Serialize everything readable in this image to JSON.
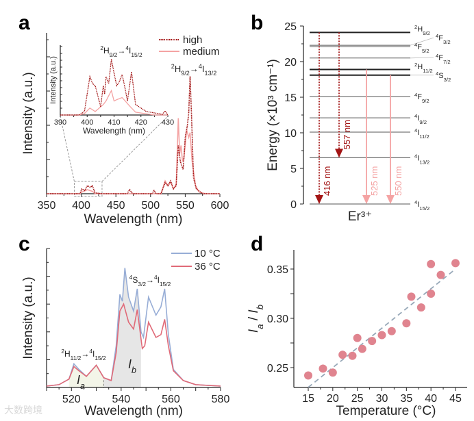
{
  "panels": {
    "a": "a",
    "b": "b",
    "c": "c",
    "d": "d"
  },
  "watermark": "大数跨境",
  "chart_data": [
    {
      "id": "a",
      "type": "line",
      "xlabel": "Wavelength (nm)",
      "ylabel": "Intensity (a.u.)",
      "xlim": [
        350,
        600
      ],
      "ylim": [
        0,
        1
      ],
      "xticks": [
        350,
        400,
        450,
        500,
        550,
        600
      ],
      "legend": {
        "placement": "top-right",
        "entries": [
          "high",
          "medium"
        ]
      },
      "colors": {
        "high": "#a31515",
        "medium": "#f4a3a3"
      },
      "annotation": {
        "up": [
          "2",
          "H",
          "9/2"
        ],
        "low": [
          "4",
          "I",
          "13/2"
        ]
      },
      "zoom_box": [
        390,
        430
      ],
      "series": [
        {
          "name": "high",
          "style": "dotted",
          "points": [
            [
              350,
              0
            ],
            [
              398,
              0
            ],
            [
              401,
              0.03
            ],
            [
              405,
              0.02
            ],
            [
              409,
              0.05
            ],
            [
              413,
              0.04
            ],
            [
              416,
              0.05
            ],
            [
              420,
              0.005
            ],
            [
              430,
              0
            ],
            [
              466,
              0
            ],
            [
              470,
              0.025
            ],
            [
              474,
              0
            ],
            [
              502,
              0
            ],
            [
              505,
              0.02
            ],
            [
              508,
              0
            ],
            [
              515,
              0
            ],
            [
              521,
              0.07
            ],
            [
              525,
              0.05
            ],
            [
              529,
              0.08
            ],
            [
              533,
              0.03
            ],
            [
              537,
              0.05
            ],
            [
              540,
              0.3
            ],
            [
              543,
              0.2
            ],
            [
              547,
              0.15
            ],
            [
              550,
              0.35
            ],
            [
              553,
              0.42
            ],
            [
              555,
              0.5
            ],
            [
              557,
              0.73
            ],
            [
              559,
              0.5
            ],
            [
              562,
              0.1
            ],
            [
              566,
              0.03
            ],
            [
              575,
              0
            ],
            [
              600,
              0
            ]
          ]
        },
        {
          "name": "medium",
          "style": "solid",
          "points": [
            [
              350,
              0
            ],
            [
              398,
              0
            ],
            [
              401,
              0.01
            ],
            [
              409,
              0.025
            ],
            [
              416,
              0.015
            ],
            [
              420,
              0
            ],
            [
              515,
              0
            ],
            [
              521,
              0.08
            ],
            [
              525,
              0.05
            ],
            [
              529,
              0.07
            ],
            [
              533,
              0.03
            ],
            [
              537,
              0.06
            ],
            [
              540,
              0.47
            ],
            [
              542,
              0.25
            ],
            [
              544,
              0.3
            ],
            [
              546,
              0.2
            ],
            [
              548,
              0.22
            ],
            [
              550,
              0.3
            ],
            [
              552,
              0.4
            ],
            [
              555,
              0.35
            ],
            [
              557,
              0.38
            ],
            [
              560,
              0.2
            ],
            [
              565,
              0.05
            ],
            [
              570,
              0.01
            ],
            [
              580,
              0
            ],
            [
              600,
              0
            ]
          ]
        }
      ],
      "inset": {
        "xlabel": "Wavelength (nm)",
        "ylabel": "Intensity (a.u.)",
        "xlim": [
          390,
          430
        ],
        "ylim": [
          0,
          1
        ],
        "xticks": [
          390,
          400,
          410,
          420,
          430
        ],
        "annotation": {
          "up": [
            "2",
            "H",
            "9/2"
          ],
          "low": [
            "4",
            "I",
            "15/2"
          ]
        },
        "series": [
          {
            "name": "high",
            "points": [
              [
                390,
                0
              ],
              [
                397,
                0
              ],
              [
                399,
                0.05
              ],
              [
                401,
                0.55
              ],
              [
                402,
                0.45
              ],
              [
                403,
                0.42
              ],
              [
                405,
                0.12
              ],
              [
                406,
                0.42
              ],
              [
                406.5,
                0.3
              ],
              [
                407,
                0.55
              ],
              [
                408,
                0.45
              ],
              [
                409,
                0.8
              ],
              [
                410,
                0.6
              ],
              [
                411,
                0.42
              ],
              [
                412,
                0.48
              ],
              [
                413,
                0.58
              ],
              [
                414,
                0.4
              ],
              [
                415,
                0.2
              ],
              [
                416.5,
                0.62
              ],
              [
                418,
                0.15
              ],
              [
                422,
                0.05
              ],
              [
                428,
                0.01
              ],
              [
                429,
                0.06
              ],
              [
                430,
                0
              ]
            ]
          },
          {
            "name": "medium",
            "points": [
              [
                390,
                0
              ],
              [
                397,
                0
              ],
              [
                399,
                0.02
              ],
              [
                401,
                0.1
              ],
              [
                403,
                0.05
              ],
              [
                406,
                0.15
              ],
              [
                407,
                0.2
              ],
              [
                409,
                0.35
              ],
              [
                410,
                0.2
              ],
              [
                411,
                0.22
              ],
              [
                413,
                0.25
              ],
              [
                416,
                0.12
              ],
              [
                418,
                0.04
              ],
              [
                425,
                0
              ],
              [
                430,
                0
              ]
            ]
          }
        ]
      }
    },
    {
      "id": "b",
      "type": "diagram",
      "ylabel": "Energy (×10³ cm⁻¹)",
      "xlabel": "Er³⁺",
      "ylim": [
        0,
        25
      ],
      "yticks": [
        0,
        5,
        10,
        15,
        20,
        25
      ],
      "levels": [
        {
          "sup": "2",
          "sym": "H",
          "sub": "9/2",
          "energy": 24.1,
          "bold": true
        },
        {
          "sup": "4",
          "sym": "F",
          "sub": "3/2",
          "energy": 22.3
        },
        {
          "sup": "4",
          "sym": "F",
          "sub": "5/2",
          "energy": 22.1
        },
        {
          "sup": "4",
          "sym": "F",
          "sub": "7/2",
          "energy": 20.5
        },
        {
          "sup": "2",
          "sym": "H",
          "sub": "11/2",
          "energy": 18.9,
          "bold": true
        },
        {
          "sup": "4",
          "sym": "S",
          "sub": "3/2",
          "energy": 18.1,
          "bold": true
        },
        {
          "sup": "4",
          "sym": "F",
          "sub": "9/2",
          "energy": 15.1
        },
        {
          "sup": "4",
          "sym": "I",
          "sub": "9/2",
          "energy": 12.1
        },
        {
          "sup": "4",
          "sym": "I",
          "sub": "11/2",
          "energy": 10.1
        },
        {
          "sup": "4",
          "sym": "I",
          "sub": "13/2",
          "energy": 6.5
        },
        {
          "sup": "4",
          "sym": "I",
          "sub": "15/2",
          "energy": 0
        }
      ],
      "label_offsets": [
        0,
        0.6,
        -0.6,
        -1.2,
        0.3,
        -0.5,
        0,
        0,
        0,
        0,
        0
      ],
      "transitions": [
        {
          "label": "416 nm",
          "from": 24.1,
          "to": 0,
          "style": "dotted",
          "color": "#a31515"
        },
        {
          "label": "557 nm",
          "from": 24.1,
          "to": 6.5,
          "style": "dotted",
          "color": "#a31515"
        },
        {
          "label": "525 nm",
          "from": 18.9,
          "to": 0,
          "style": "solid",
          "color": "#f4a3a3"
        },
        {
          "label": "550 nm",
          "from": 18.1,
          "to": 0,
          "style": "solid",
          "color": "#f4a3a3"
        }
      ]
    },
    {
      "id": "c",
      "type": "line",
      "xlabel": "Wavelength (nm)",
      "ylabel": "Intensity (a.u.)",
      "xlim": [
        510,
        580
      ],
      "ylim": [
        0,
        1
      ],
      "xticks": [
        520,
        540,
        560,
        580
      ],
      "legend": {
        "placement": "top-right",
        "entries": [
          "10 °C",
          "36 °C"
        ]
      },
      "colors": {
        "10 °C": "#97add6",
        "36 °C": "#e06a78"
      },
      "annotations": [
        {
          "up": [
            "4",
            "S",
            "3/2"
          ],
          "low": [
            "4",
            "I",
            "15/2"
          ]
        },
        {
          "up": [
            "2",
            "H",
            "11/2"
          ],
          "low": [
            "4",
            "I",
            "15/2"
          ]
        }
      ],
      "regions": [
        {
          "label": "I",
          "sub": "a",
          "range": [
            519,
            533
          ]
        },
        {
          "label": "I",
          "sub": "b",
          "range": [
            533,
            548
          ]
        }
      ],
      "series": [
        {
          "name": "10 °C",
          "points": [
            [
              510,
              0.01
            ],
            [
              515,
              0.02
            ],
            [
              519,
              0.06
            ],
            [
              521,
              0.17
            ],
            [
              523,
              0.13
            ],
            [
              526,
              0.08
            ],
            [
              530,
              0.16
            ],
            [
              533,
              0.07
            ],
            [
              536,
              0.05
            ],
            [
              538,
              0.3
            ],
            [
              539.5,
              0.67
            ],
            [
              540.5,
              0.62
            ],
            [
              541.5,
              0.86
            ],
            [
              543,
              0.65
            ],
            [
              545,
              0.55
            ],
            [
              546.5,
              0.71
            ],
            [
              548,
              0.4
            ],
            [
              549,
              0.36
            ],
            [
              551,
              0.65
            ],
            [
              554,
              0.52
            ],
            [
              556,
              0.58
            ],
            [
              557.5,
              0.71
            ],
            [
              559,
              0.38
            ],
            [
              561,
              0.13
            ],
            [
              565,
              0.05
            ],
            [
              570,
              0.02
            ],
            [
              580,
              0.01
            ]
          ]
        },
        {
          "name": "36 °C",
          "points": [
            [
              510,
              0.01
            ],
            [
              515,
              0.02
            ],
            [
              519,
              0.06
            ],
            [
              521,
              0.15
            ],
            [
              523,
              0.12
            ],
            [
              526,
              0.08
            ],
            [
              530,
              0.16
            ],
            [
              533,
              0.07
            ],
            [
              536,
              0.05
            ],
            [
              538,
              0.25
            ],
            [
              539.5,
              0.55
            ],
            [
              541,
              0.6
            ],
            [
              543,
              0.47
            ],
            [
              545,
              0.42
            ],
            [
              546.5,
              0.56
            ],
            [
              548.5,
              0.28
            ],
            [
              549.5,
              0.3
            ],
            [
              551,
              0.47
            ],
            [
              554,
              0.36
            ],
            [
              556,
              0.38
            ],
            [
              557.5,
              0.49
            ],
            [
              559,
              0.3
            ],
            [
              561,
              0.12
            ],
            [
              565,
              0.05
            ],
            [
              570,
              0.02
            ],
            [
              580,
              0.01
            ]
          ]
        }
      ]
    },
    {
      "id": "d",
      "type": "scatter",
      "xlabel": "Temperature (°C)",
      "ylabel": [
        "I",
        "a",
        "/",
        "I",
        "b"
      ],
      "xlim": [
        12,
        47
      ],
      "ylim": [
        0.23,
        0.369
      ],
      "xticks": [
        15,
        20,
        25,
        30,
        35,
        40,
        45
      ],
      "yticks": [
        0.25,
        0.3,
        0.35
      ],
      "color": "#e0848f",
      "fit_color": "#97a8b8",
      "points": [
        [
          15,
          0.242
        ],
        [
          18,
          0.249
        ],
        [
          20,
          0.245
        ],
        [
          22,
          0.263
        ],
        [
          24,
          0.262
        ],
        [
          25,
          0.28
        ],
        [
          26,
          0.269
        ],
        [
          28,
          0.277
        ],
        [
          30,
          0.283
        ],
        [
          32,
          0.287
        ],
        [
          35,
          0.295
        ],
        [
          36,
          0.322
        ],
        [
          38,
          0.311
        ],
        [
          40,
          0.325
        ],
        [
          40,
          0.355
        ],
        [
          42,
          0.344
        ],
        [
          45,
          0.356
        ]
      ],
      "fit": [
        [
          15,
          0.23
        ],
        [
          45,
          0.35
        ]
      ]
    }
  ]
}
